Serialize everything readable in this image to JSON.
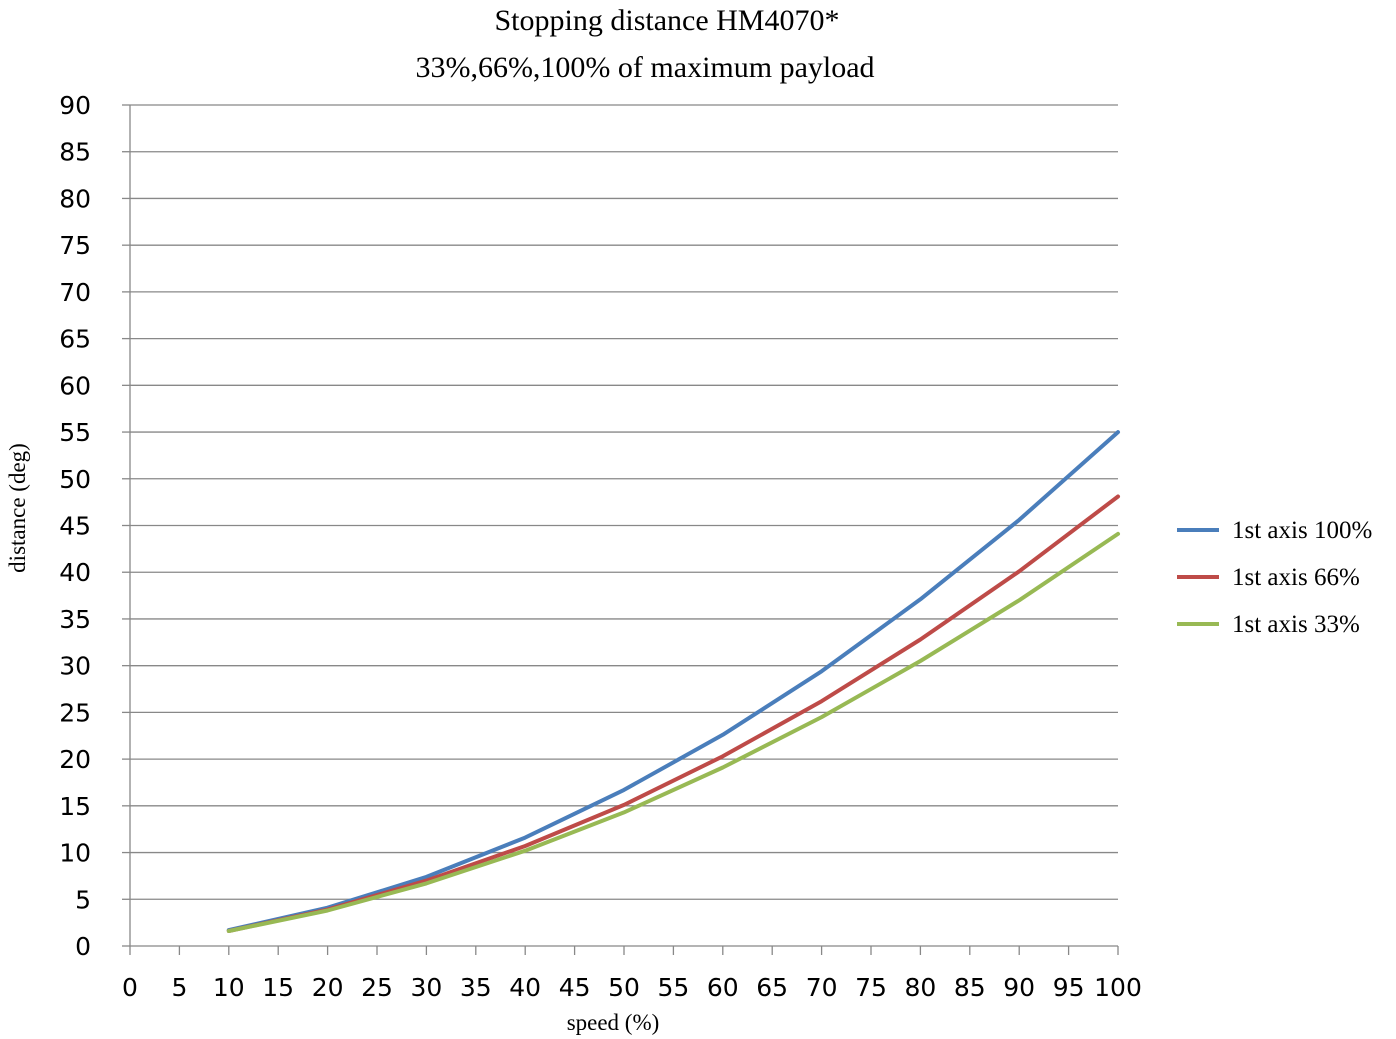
{
  "chart_data": {
    "type": "line",
    "title": "Stopping distance HM4070*",
    "subtitle": "33%,66%,100% of maximum payload",
    "xlabel": "speed (%)",
    "ylabel": "distance (deg)",
    "xlim": [
      0,
      100
    ],
    "ylim": [
      0,
      90
    ],
    "x_ticks": [
      0,
      5,
      10,
      15,
      20,
      25,
      30,
      35,
      40,
      45,
      50,
      55,
      60,
      65,
      70,
      75,
      80,
      85,
      90,
      95,
      100
    ],
    "y_ticks": [
      0,
      5,
      10,
      15,
      20,
      25,
      30,
      35,
      40,
      45,
      50,
      55,
      60,
      65,
      70,
      75,
      80,
      85,
      90
    ],
    "grid": "horizontal",
    "legend_position": "right",
    "x": [
      10,
      20,
      30,
      40,
      50,
      60,
      70,
      80,
      90,
      100
    ],
    "series": [
      {
        "name": "1st axis 100%",
        "color": "#4a7ebb",
        "values": [
          1.7,
          4.1,
          7.4,
          11.6,
          16.7,
          22.6,
          29.4,
          37.1,
          45.6,
          55.0
        ]
      },
      {
        "name": "1st axis 66%",
        "color": "#be4b48",
        "values": [
          1.6,
          3.9,
          7.0,
          10.7,
          15.1,
          20.3,
          26.2,
          32.8,
          40.1,
          48.1
        ]
      },
      {
        "name": "1st axis 33%",
        "color": "#98b954",
        "values": [
          1.6,
          3.8,
          6.7,
          10.2,
          14.3,
          19.1,
          24.5,
          30.5,
          37.0,
          44.1
        ]
      }
    ]
  }
}
